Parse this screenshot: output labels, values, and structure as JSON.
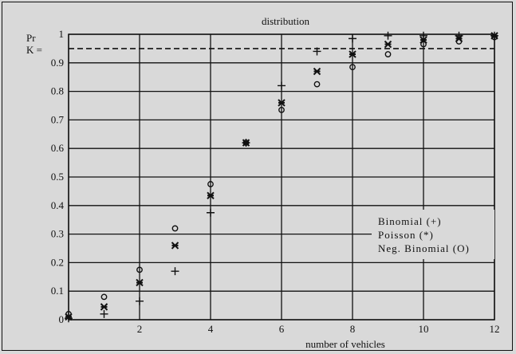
{
  "chart_data": {
    "type": "scatter",
    "title": "distribution",
    "xlabel": "number of vehicles",
    "ylabel_lines": [
      "Pr",
      "K ="
    ],
    "xlim": [
      0,
      12
    ],
    "ylim": [
      0,
      1
    ],
    "x_ticks": [
      "2",
      "4",
      "6",
      "8",
      "10",
      "12"
    ],
    "y_ticks": [
      "0",
      "0.1",
      "0.2",
      "0.3",
      "0.4",
      "0.5",
      "0.6",
      "0.7",
      "0.8",
      "0.9",
      "1"
    ],
    "grid": true,
    "reference_line": {
      "y": 0.95,
      "style": "dashed"
    },
    "legend": [
      "Binomial (+)",
      "Poisson (*)",
      "Neg. Binomial (O)"
    ],
    "legend_position": "lower-right",
    "series": [
      {
        "name": "Binomial (+)",
        "marker": "plus",
        "x": [
          0,
          1,
          2,
          3,
          4,
          5,
          6,
          7,
          8,
          9,
          10,
          11,
          12
        ],
        "y": [
          0.005,
          0.02,
          0.065,
          0.17,
          0.375,
          0.62,
          0.82,
          0.94,
          0.985,
          0.995,
          0.995,
          0.995,
          0.995
        ]
      },
      {
        "name": "Poisson (*)",
        "marker": "star",
        "x": [
          0,
          1,
          2,
          3,
          4,
          5,
          6,
          7,
          8,
          9,
          10,
          11,
          12
        ],
        "y": [
          0.01,
          0.045,
          0.13,
          0.26,
          0.435,
          0.62,
          0.76,
          0.87,
          0.93,
          0.965,
          0.98,
          0.985,
          0.995
        ]
      },
      {
        "name": "Neg. Binomial (O)",
        "marker": "circle",
        "x": [
          0,
          1,
          2,
          3,
          4,
          5,
          6,
          7,
          8,
          9,
          10,
          11,
          12
        ],
        "y": [
          0.02,
          0.08,
          0.175,
          0.32,
          0.475,
          0.62,
          0.735,
          0.825,
          0.885,
          0.93,
          0.965,
          0.975,
          0.99
        ]
      }
    ]
  }
}
